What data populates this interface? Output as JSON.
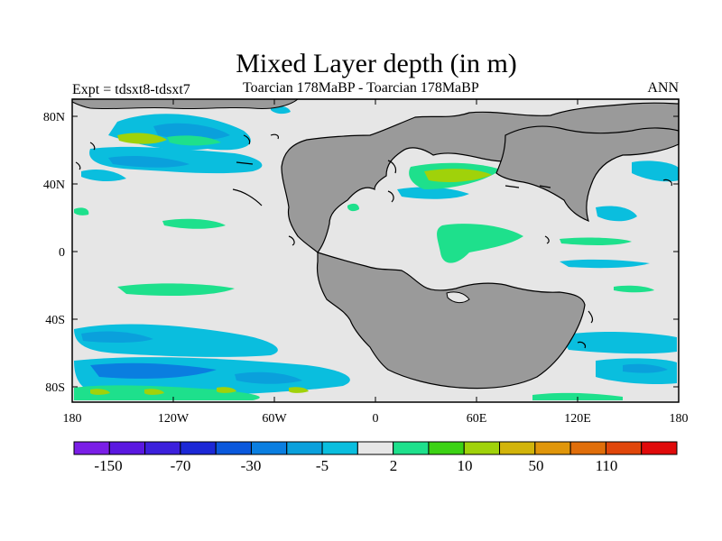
{
  "title": "Mixed Layer depth (in m)",
  "subtitle_left": "Expt = tdsxt8-tdsxt7",
  "subtitle_center": "Toarcian 178MaBP - Toarcian 178MaBP",
  "subtitle_right": "ANN",
  "lat_labels": [
    "80N",
    "40N",
    "0",
    "40S",
    "80S"
  ],
  "lon_labels": [
    "180",
    "120W",
    "60W",
    "0",
    "60E",
    "120E",
    "180"
  ],
  "colorbar": {
    "colors": [
      "#7a1ee6",
      "#5a18e0",
      "#3c20dc",
      "#1c28d6",
      "#0a58dc",
      "#0a7ee0",
      "#0aa0dc",
      "#0abede",
      "#e6e6e6",
      "#1ee08c",
      "#3cd214",
      "#a0d20a",
      "#d2b40a",
      "#e0960a",
      "#e06e0a",
      "#e0460a",
      "#e00a0a"
    ],
    "labels": [
      "-150",
      "-70",
      "-30",
      "-5",
      "2",
      "10",
      "50",
      "110"
    ]
  },
  "colors": {
    "ocean_bg": "#e6e6e6",
    "land": "#9a9a9a",
    "cyan": "#0abede",
    "mid_blue": "#0aa0dc",
    "blue": "#0a7ee0",
    "green": "#1ee08c",
    "lime": "#a0d20a",
    "bright_green": "#3cd214"
  }
}
